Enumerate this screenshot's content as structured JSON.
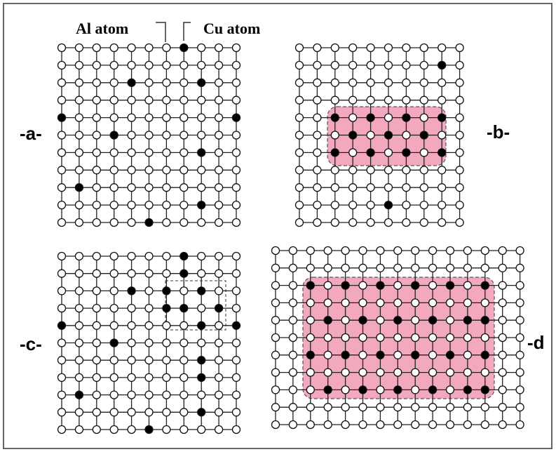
{
  "labels": {
    "al_atom": "Al atom",
    "cu_atom": "Cu atom"
  },
  "panels": [
    {
      "label": "-a-"
    },
    {
      "label": "-b-"
    },
    {
      "label": "-c-"
    },
    {
      "label": "-d"
    }
  ]
}
